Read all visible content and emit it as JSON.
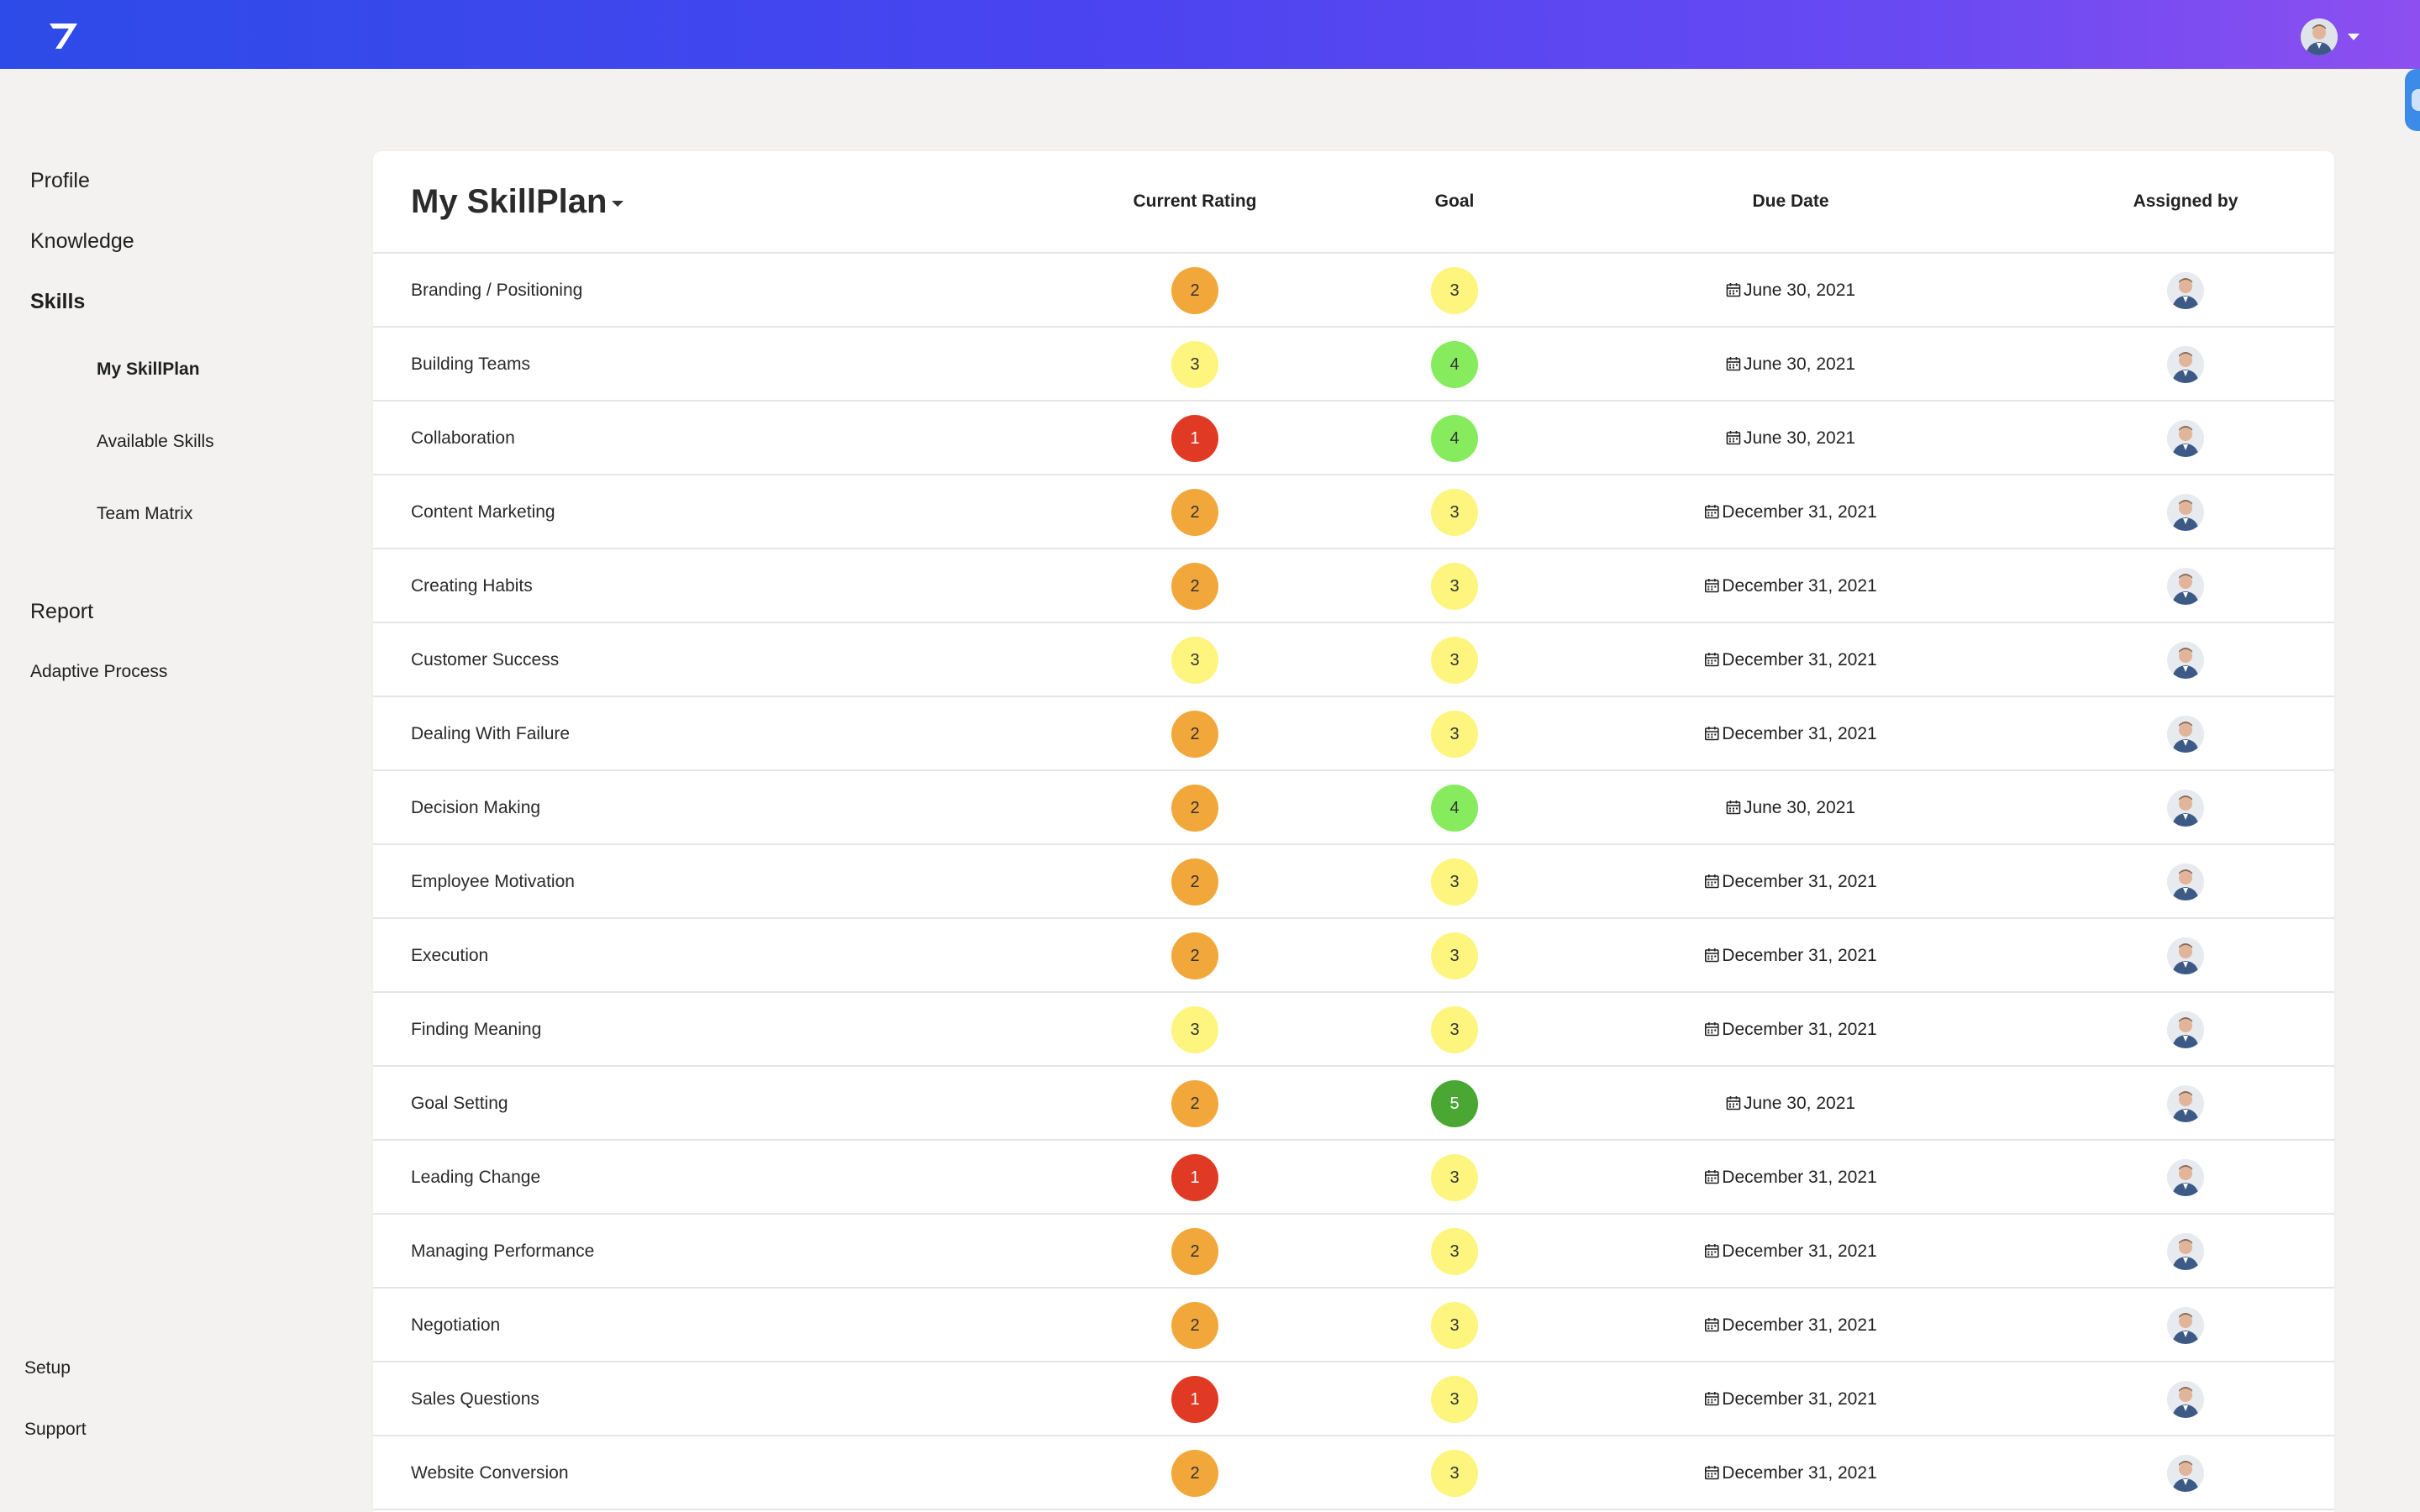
{
  "colors": {
    "rating_1": "#e03a24",
    "rating_2": "#f2a73b",
    "rating_3": "#fdf57e",
    "rating_4": "#86ec5e",
    "rating_5": "#4aa734",
    "topbar_start": "#2d4be8",
    "topbar_end": "#8d4ff0"
  },
  "topbar": {
    "logo_icon": "brand-logo-icon",
    "avatar_icon": "user-avatar-icon"
  },
  "sidebar": {
    "profile": "Profile",
    "knowledge": "Knowledge",
    "skills": "Skills",
    "my_skillplan": "My SkillPlan",
    "available_skills": "Available Skills",
    "team_matrix": "Team Matrix",
    "report": "Report",
    "adaptive_process": "Adaptive Process",
    "setup": "Setup",
    "support": "Support"
  },
  "main": {
    "title": "My SkillPlan",
    "columns": {
      "current_rating": "Current Rating",
      "goal": "Goal",
      "due_date": "Due Date",
      "assigned_by": "Assigned by"
    },
    "rows": [
      {
        "skill": "Branding / Positioning",
        "rating": 2,
        "goal": 3,
        "due": "June 30, 2021"
      },
      {
        "skill": "Building Teams",
        "rating": 3,
        "goal": 4,
        "due": "June 30, 2021"
      },
      {
        "skill": "Collaboration",
        "rating": 1,
        "goal": 4,
        "due": "June 30, 2021"
      },
      {
        "skill": "Content Marketing",
        "rating": 2,
        "goal": 3,
        "due": "December 31, 2021"
      },
      {
        "skill": "Creating Habits",
        "rating": 2,
        "goal": 3,
        "due": "December 31, 2021"
      },
      {
        "skill": "Customer Success",
        "rating": 3,
        "goal": 3,
        "due": "December 31, 2021"
      },
      {
        "skill": "Dealing With Failure",
        "rating": 2,
        "goal": 3,
        "due": "December 31, 2021"
      },
      {
        "skill": "Decision Making",
        "rating": 2,
        "goal": 4,
        "due": "June 30, 2021"
      },
      {
        "skill": "Employee Motivation",
        "rating": 2,
        "goal": 3,
        "due": "December 31, 2021"
      },
      {
        "skill": "Execution",
        "rating": 2,
        "goal": 3,
        "due": "December 31, 2021"
      },
      {
        "skill": "Finding Meaning",
        "rating": 3,
        "goal": 3,
        "due": "December 31, 2021"
      },
      {
        "skill": "Goal Setting",
        "rating": 2,
        "goal": 5,
        "due": "June 30, 2021"
      },
      {
        "skill": "Leading Change",
        "rating": 1,
        "goal": 3,
        "due": "December 31, 2021"
      },
      {
        "skill": "Managing Performance",
        "rating": 2,
        "goal": 3,
        "due": "December 31, 2021"
      },
      {
        "skill": "Negotiation",
        "rating": 2,
        "goal": 3,
        "due": "December 31, 2021"
      },
      {
        "skill": "Sales Questions",
        "rating": 1,
        "goal": 3,
        "due": "December 31, 2021"
      },
      {
        "skill": "Website Conversion",
        "rating": 2,
        "goal": 3,
        "due": "December 31, 2021"
      }
    ]
  }
}
